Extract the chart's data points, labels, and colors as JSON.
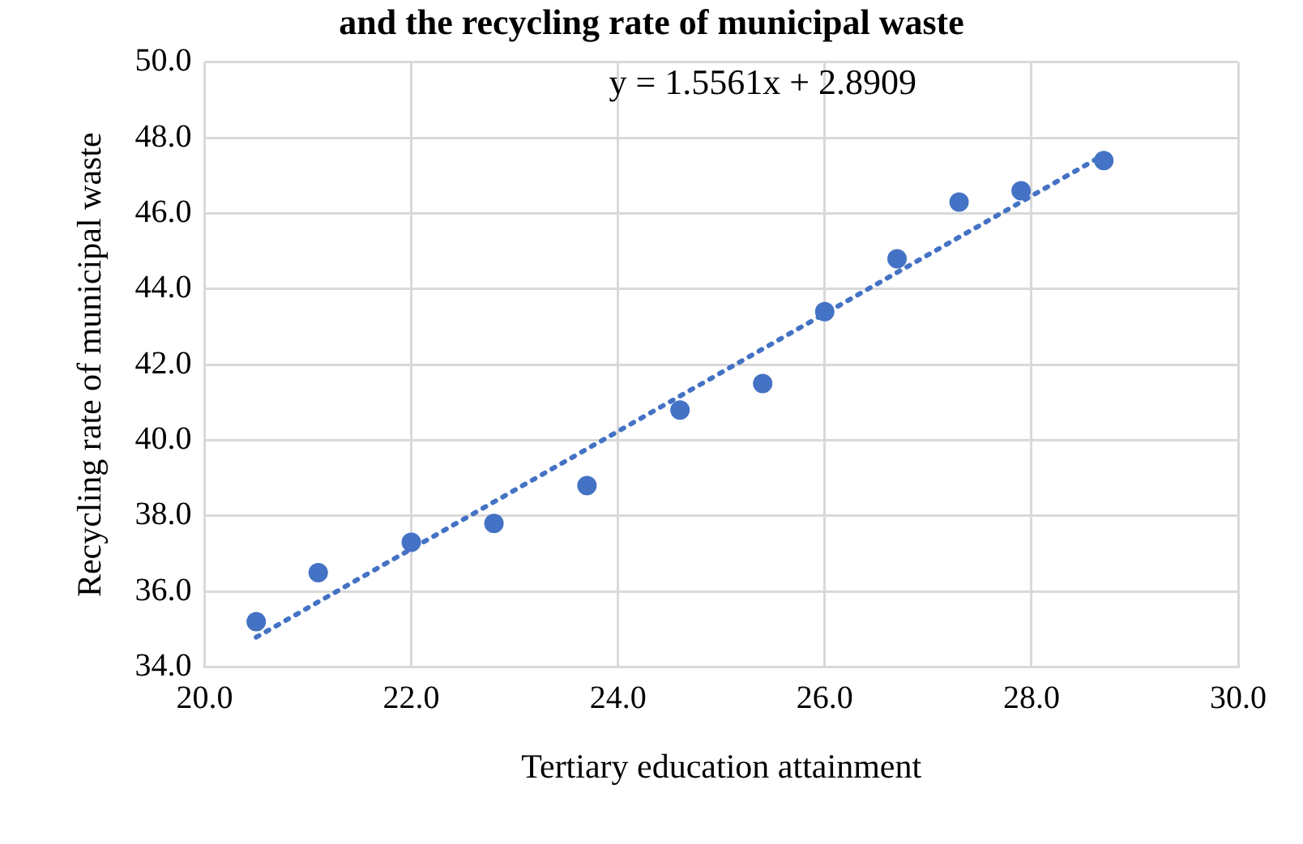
{
  "chart_data": {
    "type": "scatter",
    "title": "and the recycling rate of municipal waste",
    "xlabel": "Tertiary education attainment",
    "ylabel": "Recycling rate of municipal waste",
    "annotations": [
      "y = 1.5561x + 2.8909"
    ],
    "xlim": [
      20,
      30
    ],
    "xticks": [
      {
        "value": 20,
        "label": "20.0"
      },
      {
        "value": 22,
        "label": "22.0"
      },
      {
        "value": 24,
        "label": "24.0"
      },
      {
        "value": 26,
        "label": "26.0"
      },
      {
        "value": 28,
        "label": "28.0"
      },
      {
        "value": 30,
        "label": "30.0"
      }
    ],
    "ylim": [
      34,
      50
    ],
    "yticks": [
      {
        "value": 34,
        "label": "34.0"
      },
      {
        "value": 36,
        "label": "36.0"
      },
      {
        "value": 38,
        "label": "38.0"
      },
      {
        "value": 40,
        "label": "40.0"
      },
      {
        "value": 42,
        "label": "42.0"
      },
      {
        "value": 44,
        "label": "44.0"
      },
      {
        "value": 46,
        "label": "46.0"
      },
      {
        "value": 48,
        "label": "48.0"
      },
      {
        "value": 50,
        "label": "50.0"
      }
    ],
    "grid": true,
    "legend": false,
    "marker": "circle",
    "series": [
      {
        "type": "scatter",
        "color": "#4472c4",
        "x": [
          20.5,
          21.1,
          22.0,
          22.8,
          23.7,
          24.6,
          25.4,
          26.0,
          26.7,
          27.3,
          27.9,
          28.7
        ],
        "values": [
          35.2,
          36.5,
          37.3,
          37.8,
          38.8,
          40.8,
          41.5,
          43.4,
          44.8,
          46.3,
          46.6,
          47.4
        ]
      },
      {
        "type": "line",
        "color": "#4472c4",
        "line_style": "dotted",
        "marker": "none",
        "x": [
          20.5,
          28.7
        ],
        "values": [
          34.79,
          47.55
        ]
      }
    ]
  }
}
